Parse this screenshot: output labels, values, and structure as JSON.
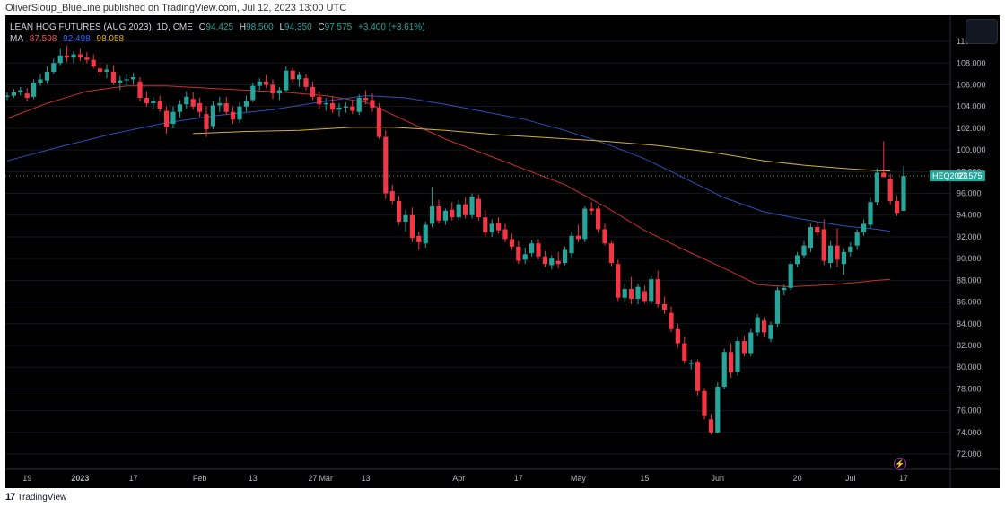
{
  "header": {
    "caption": "OliverSloup_BlueLine published on TradingView.com, Jul 12, 2023 13:00 UTC"
  },
  "legend": {
    "symbol": "LEAN HOG FUTURES (AUG 2023), 1D, CME",
    "o_label": "O",
    "o_value": "94.425",
    "h_label": "H",
    "h_value": "98.500",
    "l_label": "L",
    "l_value": "94.350",
    "c_label": "C",
    "c_value": "97.575",
    "change": "+3.400 (+3.61%)",
    "ma_label": "MA",
    "ma1": "87.598",
    "ma2": "92.498",
    "ma3": "98.058"
  },
  "price_badge": {
    "ticker": "HEQ2023",
    "price": "97.575"
  },
  "footer": {
    "brand": "TradingView",
    "logo": "17"
  },
  "colors": {
    "up": "#26a69a",
    "down": "#f23645",
    "ma_red": "#c8302c",
    "ma_blue": "#2a52be",
    "ma_yellow": "#d4b03a",
    "background": "#000000"
  },
  "chart_data": {
    "type": "candlestick",
    "title": "LEAN HOG FUTURES (AUG 2023), 1D, CME",
    "y_ticks": [
      "72.000",
      "74.000",
      "76.000",
      "78.000",
      "80.000",
      "82.000",
      "84.000",
      "86.000",
      "88.000",
      "90.000",
      "92.000",
      "94.000",
      "96.000",
      "98.000",
      "100.000",
      "102.000",
      "104.000",
      "106.000",
      "108.000",
      "110.000"
    ],
    "ylim": [
      70.6,
      112.4
    ],
    "x_ticks": [
      {
        "label": "19",
        "i": 3
      },
      {
        "label": "2023",
        "i": 11
      },
      {
        "label": "17",
        "i": 19
      },
      {
        "label": "Feb",
        "i": 29
      },
      {
        "label": "13",
        "i": 37
      },
      {
        "label": "27",
        "i": 46
      },
      {
        "label": "Mar",
        "i": 48
      },
      {
        "label": "13",
        "i": 54
      },
      {
        "label": "Apr",
        "i": 68
      },
      {
        "label": "17",
        "i": 77
      },
      {
        "label": "May",
        "i": 86
      },
      {
        "label": "15",
        "i": 96
      },
      {
        "label": "Jun",
        "i": 107
      },
      {
        "label": "20",
        "i": 119
      },
      {
        "label": "Jul",
        "i": 127
      },
      {
        "label": "17",
        "i": 135
      }
    ],
    "candles": [
      [
        104.9,
        105.3,
        104.6,
        105.0
      ],
      [
        105.0,
        105.6,
        104.8,
        105.3
      ],
      [
        105.3,
        105.8,
        105.0,
        105.5
      ],
      [
        105.2,
        105.7,
        104.5,
        104.8
      ],
      [
        104.9,
        106.5,
        104.7,
        106.2
      ],
      [
        106.2,
        107.0,
        105.9,
        106.5
      ],
      [
        106.4,
        107.7,
        106.1,
        107.2
      ],
      [
        107.2,
        108.4,
        107.0,
        108.0
      ],
      [
        108.0,
        109.3,
        107.8,
        108.7
      ],
      [
        108.7,
        109.6,
        108.1,
        108.5
      ],
      [
        108.5,
        109.1,
        108.0,
        108.8
      ],
      [
        108.8,
        109.3,
        108.2,
        108.5
      ],
      [
        108.5,
        109.0,
        108.0,
        108.3
      ],
      [
        108.3,
        108.8,
        107.5,
        107.7
      ],
      [
        107.5,
        108.1,
        106.8,
        107.2
      ],
      [
        107.2,
        107.9,
        106.6,
        107.4
      ],
      [
        107.2,
        107.8,
        106.0,
        106.2
      ],
      [
        106.2,
        106.8,
        105.5,
        106.4
      ],
      [
        106.4,
        107.0,
        105.9,
        106.5
      ],
      [
        106.5,
        107.1,
        106.0,
        106.7
      ],
      [
        106.3,
        106.7,
        104.5,
        104.8
      ],
      [
        104.8,
        105.4,
        104.0,
        104.3
      ],
      [
        104.3,
        104.9,
        103.8,
        104.5
      ],
      [
        104.5,
        105.0,
        103.5,
        103.8
      ],
      [
        103.6,
        104.0,
        101.5,
        102.1
      ],
      [
        102.4,
        104.0,
        102.0,
        103.5
      ],
      [
        103.5,
        104.6,
        103.0,
        104.2
      ],
      [
        104.2,
        105.4,
        103.8,
        104.9
      ],
      [
        104.7,
        105.3,
        103.7,
        104.0
      ],
      [
        104.3,
        104.8,
        103.0,
        103.5
      ],
      [
        103.3,
        104.0,
        101.2,
        101.9
      ],
      [
        102.2,
        104.5,
        101.9,
        104.1
      ],
      [
        104.1,
        104.9,
        103.5,
        104.3
      ],
      [
        104.3,
        104.9,
        103.2,
        103.5
      ],
      [
        103.5,
        104.0,
        102.4,
        102.8
      ],
      [
        102.8,
        104.4,
        102.5,
        104.0
      ],
      [
        104.0,
        105.0,
        103.5,
        104.5
      ],
      [
        104.6,
        106.2,
        104.4,
        105.9
      ],
      [
        105.9,
        106.6,
        105.5,
        106.3
      ],
      [
        106.3,
        106.9,
        105.7,
        106.0
      ],
      [
        106.0,
        106.5,
        104.7,
        105.2
      ],
      [
        105.2,
        105.8,
        104.6,
        105.5
      ],
      [
        105.5,
        107.7,
        105.3,
        107.3
      ],
      [
        107.3,
        107.6,
        106.2,
        106.5
      ],
      [
        106.5,
        107.2,
        105.8,
        106.9
      ],
      [
        106.6,
        107.0,
        105.5,
        105.8
      ],
      [
        105.8,
        106.3,
        104.6,
        104.9
      ],
      [
        104.9,
        105.4,
        103.8,
        104.2
      ],
      [
        104.2,
        104.8,
        103.6,
        104.3
      ],
      [
        104.3,
        104.9,
        103.4,
        103.7
      ],
      [
        103.7,
        104.3,
        103.1,
        103.9
      ],
      [
        103.9,
        104.4,
        103.4,
        104.0
      ],
      [
        104.0,
        104.5,
        103.3,
        103.6
      ],
      [
        103.5,
        105.1,
        103.2,
        104.8
      ],
      [
        104.8,
        105.5,
        104.2,
        104.6
      ],
      [
        104.6,
        105.2,
        103.5,
        103.9
      ],
      [
        103.9,
        104.3,
        101.0,
        101.2
      ],
      [
        101.2,
        101.8,
        95.5,
        96.0
      ],
      [
        96.2,
        96.8,
        95.0,
        95.3
      ],
      [
        95.3,
        95.8,
        93.1,
        93.4
      ],
      [
        93.4,
        94.5,
        92.5,
        94.0
      ],
      [
        94.0,
        94.7,
        91.5,
        91.9
      ],
      [
        92.1,
        92.5,
        90.8,
        91.5
      ],
      [
        91.4,
        93.4,
        91.0,
        93.1
      ],
      [
        93.2,
        96.6,
        92.9,
        94.8
      ],
      [
        94.8,
        95.4,
        93.2,
        93.5
      ],
      [
        93.5,
        94.6,
        93.1,
        94.4
      ],
      [
        94.5,
        95.2,
        93.5,
        93.8
      ],
      [
        93.8,
        95.4,
        93.5,
        95.0
      ],
      [
        95.0,
        95.6,
        93.7,
        94.0
      ],
      [
        94.0,
        96.0,
        93.7,
        95.7
      ],
      [
        95.5,
        95.9,
        93.5,
        93.8
      ],
      [
        93.8,
        94.5,
        92.0,
        92.4
      ],
      [
        92.4,
        93.6,
        92.0,
        93.2
      ],
      [
        93.3,
        93.8,
        92.3,
        92.6
      ],
      [
        92.7,
        93.2,
        91.5,
        91.8
      ],
      [
        91.8,
        92.3,
        90.8,
        91.1
      ],
      [
        91.1,
        91.6,
        89.5,
        89.8
      ],
      [
        89.9,
        91.0,
        89.5,
        90.4
      ],
      [
        90.5,
        91.7,
        90.2,
        91.4
      ],
      [
        91.4,
        91.8,
        89.9,
        90.2
      ],
      [
        90.2,
        90.7,
        89.2,
        89.5
      ],
      [
        89.4,
        90.3,
        89.0,
        90.0
      ],
      [
        89.8,
        90.6,
        89.1,
        89.5
      ],
      [
        89.6,
        91.1,
        89.4,
        90.8
      ],
      [
        90.5,
        92.5,
        90.1,
        92.1
      ],
      [
        92.1,
        93.1,
        91.5,
        91.8
      ],
      [
        91.8,
        94.8,
        91.5,
        94.6
      ],
      [
        94.6,
        95.2,
        94.0,
        94.4
      ],
      [
        94.6,
        94.8,
        92.4,
        92.7
      ],
      [
        92.7,
        93.2,
        91.2,
        91.4
      ],
      [
        91.4,
        91.6,
        89.3,
        89.6
      ],
      [
        89.5,
        89.9,
        86.1,
        86.4
      ],
      [
        86.4,
        87.7,
        86.0,
        87.2
      ],
      [
        87.2,
        88.3,
        85.8,
        86.3
      ],
      [
        86.3,
        87.7,
        85.8,
        87.4
      ],
      [
        87.0,
        87.5,
        85.9,
        86.1
      ],
      [
        86.1,
        88.4,
        85.8,
        88.1
      ],
      [
        88.1,
        88.9,
        85.5,
        85.8
      ],
      [
        85.8,
        86.5,
        84.9,
        85.3
      ],
      [
        85.0,
        85.6,
        83.2,
        83.5
      ],
      [
        83.5,
        84.0,
        81.8,
        82.2
      ],
      [
        82.2,
        82.8,
        80.3,
        80.6
      ],
      [
        80.3,
        80.7,
        79.8,
        80.4
      ],
      [
        80.5,
        80.7,
        77.4,
        77.8
      ],
      [
        77.8,
        78.1,
        75.2,
        75.5
      ],
      [
        75.2,
        75.7,
        73.8,
        74.0
      ],
      [
        74.0,
        78.6,
        73.9,
        78.2
      ],
      [
        78.2,
        81.7,
        78.0,
        81.4
      ],
      [
        81.4,
        82.2,
        79.0,
        79.5
      ],
      [
        79.6,
        82.8,
        79.2,
        82.4
      ],
      [
        82.4,
        82.9,
        81.0,
        81.3
      ],
      [
        81.3,
        83.5,
        81.0,
        83.2
      ],
      [
        83.2,
        84.9,
        82.9,
        84.6
      ],
      [
        84.3,
        84.6,
        82.8,
        83.2
      ],
      [
        82.6,
        84.2,
        82.3,
        83.9
      ],
      [
        84.0,
        87.4,
        83.7,
        87.1
      ],
      [
        87.1,
        87.6,
        86.6,
        87.3
      ],
      [
        87.3,
        89.8,
        87.1,
        89.5
      ],
      [
        89.5,
        90.6,
        89.2,
        90.3
      ],
      [
        90.3,
        91.6,
        90.0,
        91.2
      ],
      [
        91.0,
        93.2,
        90.6,
        92.9
      ],
      [
        92.9,
        93.4,
        92.1,
        92.4
      ],
      [
        92.7,
        93.6,
        89.4,
        89.8
      ],
      [
        89.6,
        91.6,
        89.1,
        91.2
      ],
      [
        91.2,
        92.8,
        89.2,
        89.9
      ],
      [
        89.5,
        90.9,
        88.5,
        90.6
      ],
      [
        90.6,
        91.5,
        90.2,
        91.1
      ],
      [
        91.2,
        92.7,
        90.8,
        92.4
      ],
      [
        92.4,
        93.6,
        92.1,
        93.2
      ],
      [
        93.1,
        95.6,
        92.8,
        95.2
      ],
      [
        95.2,
        98.3,
        94.9,
        97.9
      ],
      [
        97.9,
        100.8,
        97.6,
        97.5
      ],
      [
        97.3,
        97.8,
        95.0,
        95.3
      ],
      [
        95.3,
        95.8,
        93.9,
        94.2
      ],
      [
        94.4,
        98.5,
        94.4,
        97.6
      ]
    ],
    "ma_series": [
      {
        "values_label": "87.598",
        "start": 0,
        "points": [
          [
            0,
            102.9
          ],
          [
            6,
            104.3
          ],
          [
            12,
            105.4
          ],
          [
            18,
            105.9
          ],
          [
            24,
            105.9
          ],
          [
            30,
            105.7
          ],
          [
            36,
            105.5
          ],
          [
            42,
            105.3
          ],
          [
            48,
            105.0
          ],
          [
            54,
            104.4
          ],
          [
            60,
            102.7
          ],
          [
            66,
            101.0
          ],
          [
            72,
            99.6
          ],
          [
            78,
            98.2
          ],
          [
            84,
            96.8
          ],
          [
            90,
            94.8
          ],
          [
            96,
            92.6
          ],
          [
            102,
            90.8
          ],
          [
            108,
            89.1
          ],
          [
            113,
            87.6
          ],
          [
            118,
            87.4
          ],
          [
            124,
            87.6
          ],
          [
            128,
            87.8
          ],
          [
            131,
            88.0
          ],
          [
            133,
            88.1
          ]
        ]
      },
      {
        "values_label": "92.498",
        "start": 0,
        "points": [
          [
            0,
            99.0
          ],
          [
            8,
            100.3
          ],
          [
            16,
            101.5
          ],
          [
            24,
            102.5
          ],
          [
            32,
            103.2
          ],
          [
            40,
            103.7
          ],
          [
            48,
            104.5
          ],
          [
            54,
            105.0
          ],
          [
            60,
            104.8
          ],
          [
            66,
            104.2
          ],
          [
            72,
            103.5
          ],
          [
            78,
            102.8
          ],
          [
            84,
            101.8
          ],
          [
            90,
            100.6
          ],
          [
            96,
            99.2
          ],
          [
            102,
            97.4
          ],
          [
            108,
            95.6
          ],
          [
            114,
            94.3
          ],
          [
            120,
            93.6
          ],
          [
            126,
            93.0
          ],
          [
            131,
            92.7
          ],
          [
            133,
            92.5
          ]
        ]
      },
      {
        "values_label": "98.058",
        "start": 28,
        "points": [
          [
            28,
            101.5
          ],
          [
            36,
            101.7
          ],
          [
            44,
            101.8
          ],
          [
            52,
            102.1
          ],
          [
            58,
            102.1
          ],
          [
            66,
            101.8
          ],
          [
            74,
            101.4
          ],
          [
            82,
            101.1
          ],
          [
            90,
            100.8
          ],
          [
            98,
            100.4
          ],
          [
            106,
            99.8
          ],
          [
            114,
            99.0
          ],
          [
            120,
            98.6
          ],
          [
            126,
            98.3
          ],
          [
            131,
            98.1
          ],
          [
            133,
            98.06
          ]
        ]
      }
    ]
  }
}
